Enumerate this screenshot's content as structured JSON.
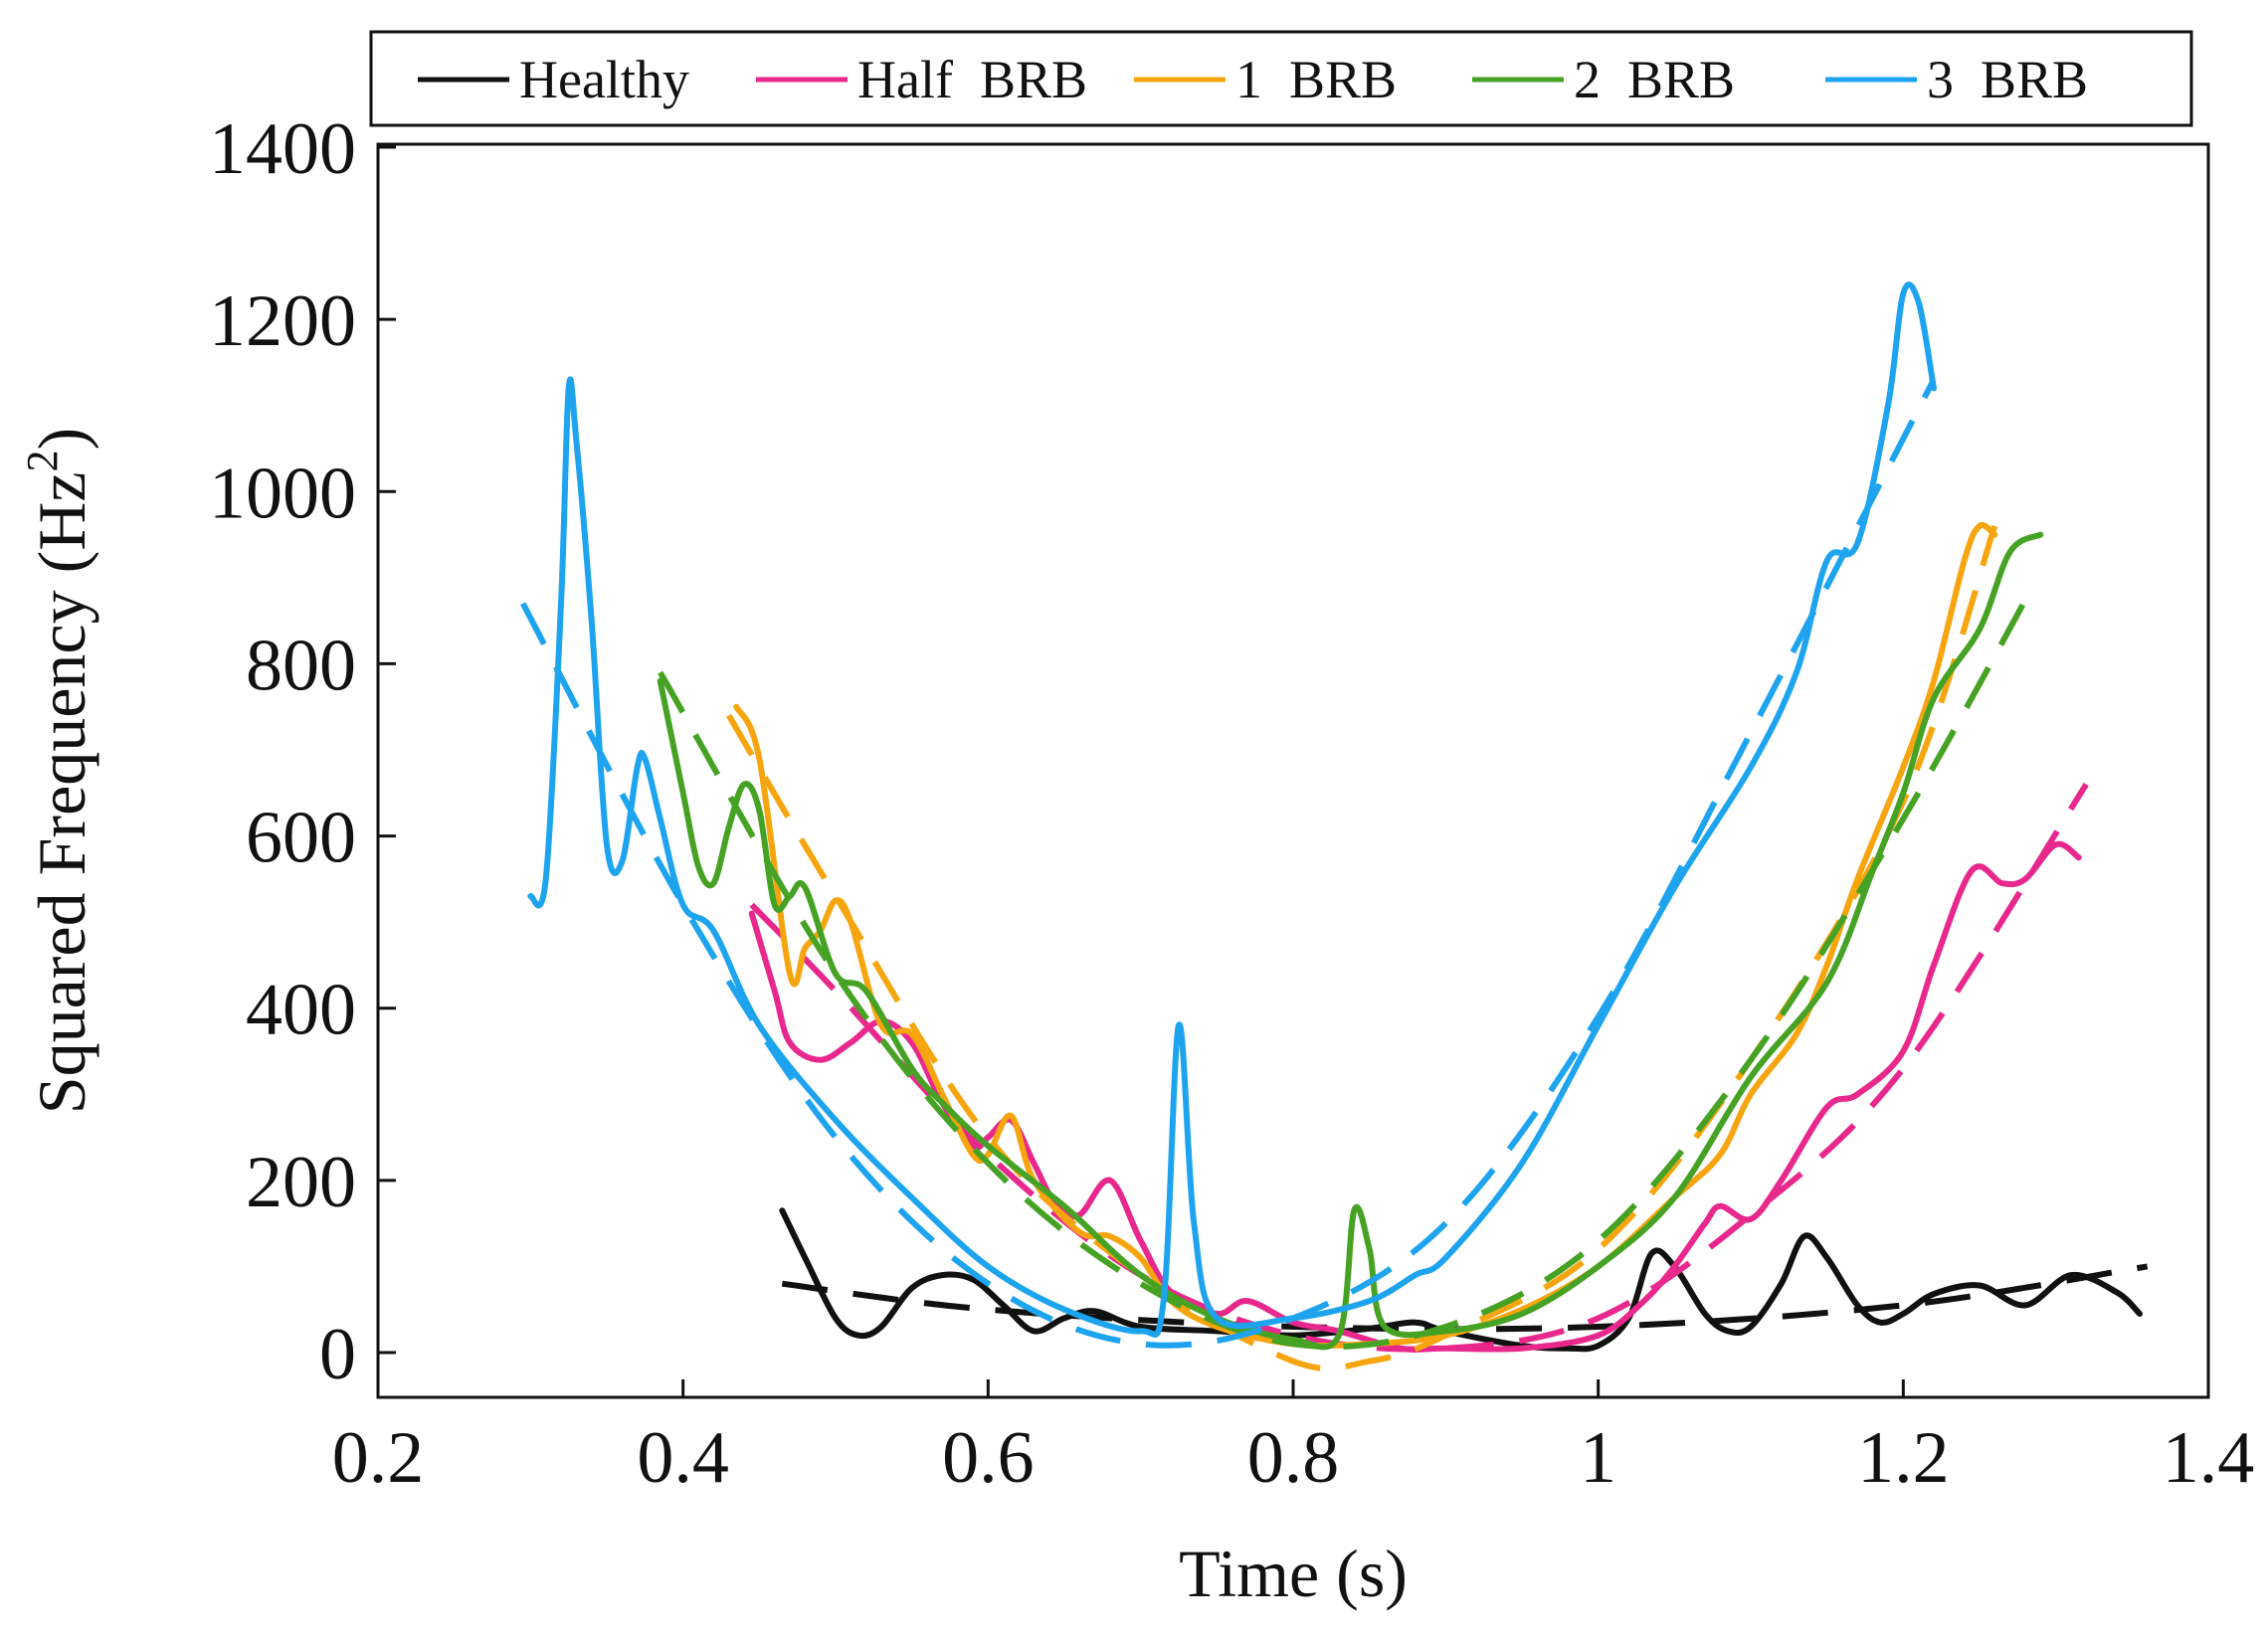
{
  "chart_data": {
    "type": "line",
    "title": "",
    "xlabel": "Time (s)",
    "ylabel": "Squared Frequency (Hz",
    "ylabel_sup": "2",
    "ylabel_close": ")",
    "xlim": [
      0.2,
      1.4
    ],
    "ylim": [
      -50,
      1400
    ],
    "xticks": [
      0.2,
      0.4,
      0.6,
      0.8,
      1,
      1.2,
      1.4
    ],
    "yticks": [
      0,
      200,
      400,
      600,
      800,
      1000,
      1200,
      1400
    ],
    "grid": false,
    "legend_position": "top",
    "series": [
      {
        "name": "Healthy",
        "color": "#111111",
        "data": [
          [
            0.465,
            165
          ],
          [
            0.48,
            110
          ],
          [
            0.5,
            40
          ],
          [
            0.515,
            20
          ],
          [
            0.53,
            30
          ],
          [
            0.55,
            75
          ],
          [
            0.57,
            90
          ],
          [
            0.59,
            85
          ],
          [
            0.61,
            55
          ],
          [
            0.63,
            25
          ],
          [
            0.65,
            40
          ],
          [
            0.67,
            48
          ],
          [
            0.7,
            30
          ],
          [
            0.75,
            25
          ],
          [
            0.8,
            20
          ],
          [
            0.85,
            28
          ],
          [
            0.88,
            35
          ],
          [
            0.9,
            25
          ],
          [
            0.95,
            8
          ],
          [
            0.98,
            5
          ],
          [
            1.0,
            8
          ],
          [
            1.02,
            40
          ],
          [
            1.035,
            115
          ],
          [
            1.05,
            100
          ],
          [
            1.07,
            45
          ],
          [
            1.085,
            25
          ],
          [
            1.1,
            30
          ],
          [
            1.12,
            80
          ],
          [
            1.135,
            135
          ],
          [
            1.15,
            110
          ],
          [
            1.17,
            55
          ],
          [
            1.185,
            35
          ],
          [
            1.2,
            45
          ],
          [
            1.22,
            68
          ],
          [
            1.25,
            78
          ],
          [
            1.28,
            55
          ],
          [
            1.31,
            90
          ],
          [
            1.34,
            70
          ],
          [
            1.355,
            45
          ]
        ],
        "fit": [
          [
            0.465,
            80
          ],
          [
            0.6,
            50
          ],
          [
            0.8,
            30
          ],
          [
            1.0,
            30
          ],
          [
            1.2,
            55
          ],
          [
            1.36,
            100
          ]
        ]
      },
      {
        "name": "Half  BRB",
        "color": "#e8288c",
        "data": [
          [
            0.445,
            510
          ],
          [
            0.46,
            420
          ],
          [
            0.47,
            360
          ],
          [
            0.49,
            340
          ],
          [
            0.51,
            360
          ],
          [
            0.53,
            385
          ],
          [
            0.55,
            360
          ],
          [
            0.57,
            290
          ],
          [
            0.59,
            240
          ],
          [
            0.6,
            250
          ],
          [
            0.615,
            270
          ],
          [
            0.63,
            220
          ],
          [
            0.645,
            170
          ],
          [
            0.66,
            160
          ],
          [
            0.68,
            200
          ],
          [
            0.7,
            130
          ],
          [
            0.72,
            70
          ],
          [
            0.75,
            45
          ],
          [
            0.77,
            60
          ],
          [
            0.8,
            35
          ],
          [
            0.83,
            25
          ],
          [
            0.87,
            5
          ],
          [
            0.9,
            5
          ],
          [
            0.95,
            5
          ],
          [
            1.0,
            20
          ],
          [
            1.03,
            60
          ],
          [
            1.05,
            100
          ],
          [
            1.07,
            150
          ],
          [
            1.08,
            170
          ],
          [
            1.1,
            155
          ],
          [
            1.12,
            200
          ],
          [
            1.15,
            285
          ],
          [
            1.17,
            300
          ],
          [
            1.2,
            350
          ],
          [
            1.22,
            450
          ],
          [
            1.245,
            560
          ],
          [
            1.265,
            545
          ],
          [
            1.28,
            550
          ],
          [
            1.3,
            590
          ],
          [
            1.315,
            575
          ]
        ],
        "fit": [
          [
            0.445,
            520
          ],
          [
            0.5,
            420
          ],
          [
            0.6,
            230
          ],
          [
            0.7,
            90
          ],
          [
            0.8,
            20
          ],
          [
            0.9,
            5
          ],
          [
            1.0,
            40
          ],
          [
            1.1,
            160
          ],
          [
            1.2,
            330
          ],
          [
            1.32,
            660
          ]
        ]
      },
      {
        "name": "1  BRB",
        "color": "#f7a50f",
        "data": [
          [
            0.435,
            750
          ],
          [
            0.45,
            690
          ],
          [
            0.47,
            440
          ],
          [
            0.48,
            470
          ],
          [
            0.49,
            490
          ],
          [
            0.5,
            525
          ],
          [
            0.51,
            500
          ],
          [
            0.53,
            380
          ],
          [
            0.55,
            370
          ],
          [
            0.57,
            300
          ],
          [
            0.59,
            230
          ],
          [
            0.6,
            230
          ],
          [
            0.615,
            275
          ],
          [
            0.63,
            200
          ],
          [
            0.66,
            140
          ],
          [
            0.68,
            135
          ],
          [
            0.7,
            110
          ],
          [
            0.72,
            60
          ],
          [
            0.75,
            30
          ],
          [
            0.8,
            10
          ],
          [
            0.85,
            10
          ],
          [
            0.9,
            20
          ],
          [
            0.95,
            50
          ],
          [
            1.0,
            100
          ],
          [
            1.05,
            180
          ],
          [
            1.08,
            230
          ],
          [
            1.1,
            300
          ],
          [
            1.13,
            370
          ],
          [
            1.15,
            450
          ],
          [
            1.17,
            550
          ],
          [
            1.2,
            680
          ],
          [
            1.22,
            780
          ],
          [
            1.24,
            920
          ],
          [
            1.25,
            960
          ],
          [
            1.26,
            950
          ]
        ],
        "fit": [
          [
            0.43,
            740
          ],
          [
            0.5,
            530
          ],
          [
            0.6,
            250
          ],
          [
            0.7,
            90
          ],
          [
            0.8,
            -10
          ],
          [
            0.85,
            -10
          ],
          [
            0.9,
            20
          ],
          [
            1.0,
            120
          ],
          [
            1.1,
            340
          ],
          [
            1.2,
            640
          ],
          [
            1.26,
            960
          ]
        ]
      },
      {
        "name": "2  BRB",
        "color": "#46a224",
        "data": [
          [
            0.385,
            780
          ],
          [
            0.4,
            650
          ],
          [
            0.41,
            565
          ],
          [
            0.42,
            545
          ],
          [
            0.43,
            610
          ],
          [
            0.44,
            660
          ],
          [
            0.45,
            630
          ],
          [
            0.46,
            520
          ],
          [
            0.47,
            530
          ],
          [
            0.48,
            540
          ],
          [
            0.5,
            440
          ],
          [
            0.52,
            420
          ],
          [
            0.55,
            330
          ],
          [
            0.57,
            290
          ],
          [
            0.6,
            240
          ],
          [
            0.65,
            170
          ],
          [
            0.7,
            90
          ],
          [
            0.75,
            40
          ],
          [
            0.8,
            15
          ],
          [
            0.83,
            20
          ],
          [
            0.84,
            165
          ],
          [
            0.85,
            120
          ],
          [
            0.86,
            30
          ],
          [
            0.9,
            25
          ],
          [
            0.95,
            45
          ],
          [
            1.0,
            100
          ],
          [
            1.05,
            180
          ],
          [
            1.1,
            320
          ],
          [
            1.15,
            430
          ],
          [
            1.18,
            560
          ],
          [
            1.2,
            650
          ],
          [
            1.22,
            760
          ],
          [
            1.25,
            840
          ],
          [
            1.27,
            930
          ],
          [
            1.29,
            950
          ]
        ],
        "fit": [
          [
            0.385,
            790
          ],
          [
            0.5,
            440
          ],
          [
            0.6,
            220
          ],
          [
            0.7,
            80
          ],
          [
            0.8,
            10
          ],
          [
            0.9,
            30
          ],
          [
            1.0,
            130
          ],
          [
            1.1,
            340
          ],
          [
            1.2,
            620
          ],
          [
            1.285,
            890
          ]
        ]
      },
      {
        "name": "3  BRB",
        "color": "#1ea4ef",
        "data": [
          [
            0.3,
            530
          ],
          [
            0.31,
            550
          ],
          [
            0.32,
            870
          ],
          [
            0.325,
            1120
          ],
          [
            0.33,
            1060
          ],
          [
            0.34,
            850
          ],
          [
            0.35,
            590
          ],
          [
            0.36,
            570
          ],
          [
            0.37,
            680
          ],
          [
            0.375,
            690
          ],
          [
            0.385,
            620
          ],
          [
            0.4,
            520
          ],
          [
            0.42,
            490
          ],
          [
            0.45,
            380
          ],
          [
            0.5,
            270
          ],
          [
            0.55,
            180
          ],
          [
            0.6,
            100
          ],
          [
            0.65,
            50
          ],
          [
            0.7,
            25
          ],
          [
            0.715,
            60
          ],
          [
            0.725,
            380
          ],
          [
            0.735,
            150
          ],
          [
            0.75,
            40
          ],
          [
            0.8,
            40
          ],
          [
            0.85,
            60
          ],
          [
            0.88,
            90
          ],
          [
            0.9,
            110
          ],
          [
            0.95,
            220
          ],
          [
            1.0,
            380
          ],
          [
            1.05,
            540
          ],
          [
            1.1,
            680
          ],
          [
            1.13,
            790
          ],
          [
            1.15,
            920
          ],
          [
            1.17,
            940
          ],
          [
            1.19,
            1100
          ],
          [
            1.2,
            1230
          ],
          [
            1.21,
            1220
          ],
          [
            1.22,
            1120
          ]
        ],
        "fit": [
          [
            0.295,
            870
          ],
          [
            0.4,
            520
          ],
          [
            0.5,
            250
          ],
          [
            0.6,
            80
          ],
          [
            0.7,
            10
          ],
          [
            0.8,
            40
          ],
          [
            0.9,
            150
          ],
          [
            1.0,
            390
          ],
          [
            1.1,
            720
          ],
          [
            1.22,
            1130
          ]
        ]
      }
    ]
  }
}
